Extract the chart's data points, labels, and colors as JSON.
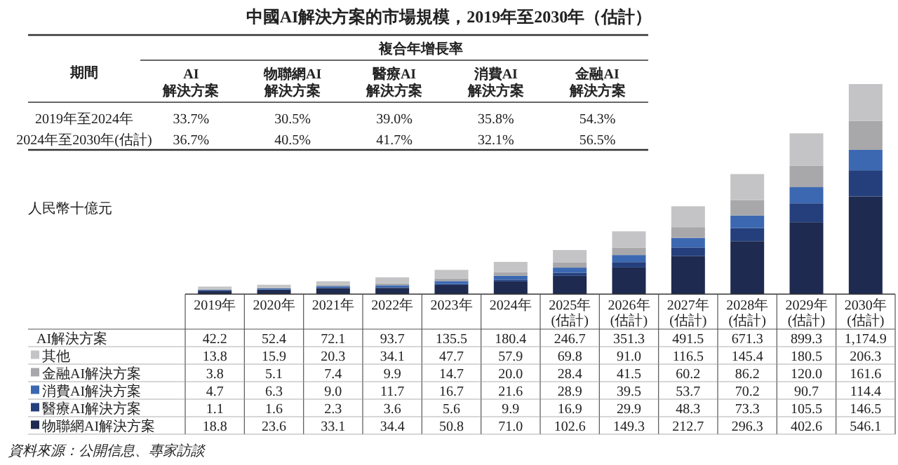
{
  "chart_data": [
    {
      "type": "other",
      "title": "中國AI解決方案的市場規模，2019年至2030年（估計）",
      "subtitle": "複合年增長率",
      "ylabel": "期間",
      "categories": [
        "AI\n解決方案",
        "物聯網AI\n解決方案",
        "醫療AI\n解決方案",
        "消費AI\n解決方案",
        "金融AI\n解決方案"
      ],
      "y_categories": [
        "2019年至2024年",
        "2024年至2030年(估計)"
      ],
      "cell_labels": [
        [
          "33.7%",
          "30.5%",
          "39.0%",
          "35.8%",
          "54.3%"
        ],
        [
          "36.7%",
          "40.5%",
          "41.7%",
          "32.1%",
          "56.5%"
        ]
      ]
    },
    {
      "type": "bar",
      "stacked": true,
      "ylabel": "人民幣十億元",
      "legend": "bottom",
      "categories": [
        "2019年",
        "2020年",
        "2021年",
        "2022年",
        "2023年",
        "2024年",
        "2025年\n(估計)",
        "2026年\n(估計)",
        "2027年\n(估計)",
        "2028年\n(估計)",
        "2029年\n(估計)",
        "2030年\n(估計)"
      ],
      "series": [
        {
          "name": "物聯網AI解決方案",
          "color": "#1e2a4f",
          "values": [
            18.8,
            23.6,
            33.1,
            34.4,
            50.8,
            71.0,
            102.6,
            149.3,
            212.7,
            296.3,
            402.6,
            546.1
          ],
          "value_labels": [
            "18.8",
            "23.6",
            "33.1",
            "34.4",
            "50.8",
            "71.0",
            "102.6",
            "149.3",
            "212.7",
            "296.3",
            "402.6",
            "546.1"
          ]
        },
        {
          "name": "醫療AI解決方案",
          "color": "#243f7c",
          "values": [
            1.1,
            1.6,
            2.3,
            3.6,
            5.6,
            9.9,
            16.9,
            29.9,
            48.3,
            73.3,
            105.5,
            146.5
          ],
          "value_labels": [
            "1.1",
            "1.6",
            "2.3",
            "3.6",
            "5.6",
            "9.9",
            "16.9",
            "29.9",
            "48.3",
            "73.3",
            "105.5",
            "146.5"
          ]
        },
        {
          "name": "消費AI解決方案",
          "color": "#3c68b1",
          "values": [
            4.7,
            6.3,
            9.0,
            11.7,
            16.7,
            21.6,
            28.9,
            39.5,
            53.7,
            70.2,
            90.7,
            114.4
          ],
          "value_labels": [
            "4.7",
            "6.3",
            "9.0",
            "11.7",
            "16.7",
            "21.6",
            "28.9",
            "39.5",
            "53.7",
            "70.2",
            "90.7",
            "114.4"
          ]
        },
        {
          "name": "金融AI解決方案",
          "color": "#a8a8aa",
          "values": [
            3.8,
            5.1,
            7.4,
            9.9,
            14.7,
            20.0,
            28.4,
            41.5,
            60.2,
            86.2,
            120.0,
            161.6
          ],
          "value_labels": [
            "3.8",
            "5.1",
            "7.4",
            "9.9",
            "14.7",
            "20.0",
            "28.4",
            "41.5",
            "60.2",
            "86.2",
            "120.0",
            "161.6"
          ]
        },
        {
          "name": "其他",
          "color": "#c4c4c6",
          "values": [
            13.8,
            15.9,
            20.3,
            34.1,
            47.7,
            57.9,
            69.8,
            91.0,
            116.5,
            145.4,
            180.5,
            206.3
          ],
          "value_labels": [
            "13.8",
            "15.9",
            "20.3",
            "34.1",
            "47.7",
            "57.9",
            "69.8",
            "91.0",
            "116.5",
            "145.4",
            "180.5",
            "206.3"
          ]
        }
      ],
      "totals": [
        "42.2",
        "52.4",
        "72.1",
        "93.7",
        "135.5",
        "180.4",
        "246.7",
        "351.3",
        "491.5",
        "671.3",
        "899.3",
        "1,174.9"
      ],
      "annotations": [
        "AI解決方案",
        "資料來源：公開信息、專家訪談"
      ]
    }
  ]
}
